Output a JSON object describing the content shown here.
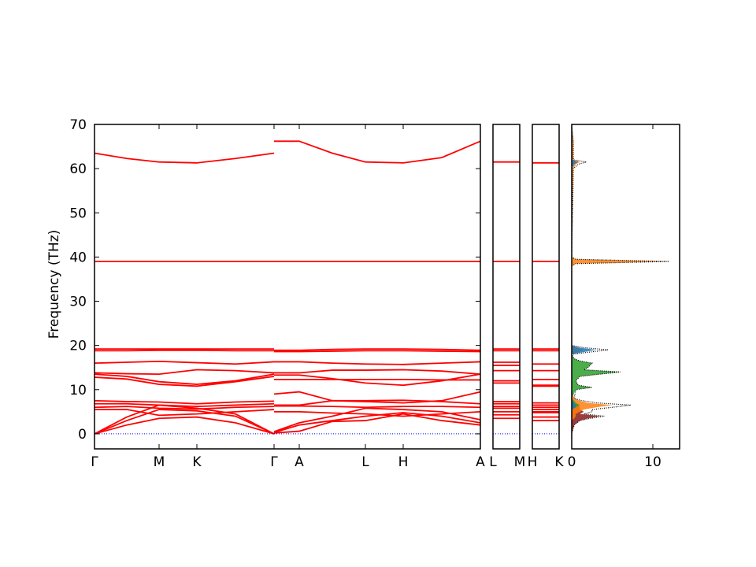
{
  "chart_data": [
    {
      "type": "line",
      "ylabel": "Frequency (THz)",
      "color": "#ff0000",
      "xlim": [
        0,
        490
      ],
      "ylim": [
        -3.4,
        70
      ],
      "yticks": [
        0,
        10,
        20,
        30,
        40,
        50,
        60,
        70
      ],
      "xticks": [
        {
          "value": 0,
          "label": "Γ"
        },
        {
          "value": 82,
          "label": "M"
        },
        {
          "value": 130,
          "label": "K"
        },
        {
          "value": 228,
          "label": "Γ"
        },
        {
          "value": 260,
          "label": "A"
        },
        {
          "value": 344,
          "label": "L"
        },
        {
          "value": 392,
          "label": "H"
        },
        {
          "value": 490,
          "label": "A"
        }
      ],
      "x": [
        0,
        41,
        82,
        130,
        179,
        228,
        228,
        228,
        260,
        302,
        344,
        392,
        441,
        490
      ],
      "series": [
        {
          "values": [
            63.5,
            62.3,
            61.5,
            61.3,
            62.3,
            63.5,
            null,
            66.2,
            66.2,
            63.5,
            61.5,
            61.3,
            62.5,
            66.2
          ]
        },
        {
          "values": [
            39,
            39,
            39,
            39,
            39,
            39,
            null,
            39,
            39,
            39,
            39,
            39,
            39,
            39
          ]
        },
        {
          "values": [
            19.2,
            19.2,
            19.2,
            19.2,
            19.2,
            19.2,
            null,
            18.9,
            18.9,
            19.1,
            19.2,
            19.2,
            19.1,
            18.9
          ]
        },
        {
          "values": [
            18.8,
            18.8,
            18.9,
            18.9,
            18.8,
            18.8,
            null,
            18.6,
            18.6,
            18.7,
            18.8,
            18.8,
            18.7,
            18.6
          ]
        },
        {
          "values": [
            16,
            16.2,
            16.4,
            16.1,
            15.8,
            16.3,
            null,
            16.3,
            16.3,
            16,
            15.8,
            15.7,
            16,
            16.3
          ]
        },
        {
          "values": [
            13.8,
            13.6,
            13.5,
            14.5,
            14.3,
            13.8,
            null,
            13.8,
            13.8,
            14.4,
            14.4,
            14.5,
            14.2,
            13.5
          ]
        },
        {
          "values": [
            13.5,
            13,
            11.8,
            11.2,
            12,
            13.5,
            null,
            13.3,
            13.3,
            12.5,
            11.5,
            11,
            12,
            13.5
          ]
        },
        {
          "values": [
            12.8,
            12.4,
            11.2,
            10.8,
            11.8,
            13,
            null,
            12.3,
            12.3,
            12.3,
            12.3,
            12.3,
            12.2,
            12.2
          ]
        },
        {
          "values": [
            7.5,
            7.3,
            7.2,
            6.8,
            7.2,
            7.4,
            null,
            9,
            9.5,
            7.5,
            7.3,
            7,
            7.5,
            9.5
          ]
        },
        {
          "values": [
            6.8,
            6.8,
            6.5,
            6.2,
            6.5,
            6.8,
            null,
            6.5,
            6.5,
            7.5,
            7.5,
            7.6,
            7.3,
            6.8
          ]
        },
        {
          "values": [
            6,
            6.2,
            5.8,
            5.6,
            6,
            6.2,
            null,
            6.3,
            6.3,
            6.2,
            6,
            6.2,
            6.2,
            6
          ]
        },
        {
          "values": [
            5.5,
            5.5,
            4.2,
            4.5,
            5,
            5.5,
            null,
            5,
            5,
            4.7,
            4.5,
            4,
            4.5,
            5
          ]
        },
        {
          "values": [
            0,
            3.8,
            6.5,
            5.8,
            4.5,
            0,
            null,
            0.5,
            2.5,
            4,
            5.8,
            5.5,
            5,
            3.2
          ]
        },
        {
          "values": [
            0,
            3,
            5.5,
            5.2,
            4,
            0,
            null,
            0.3,
            2,
            3,
            4,
            4.8,
            4,
            2.5
          ]
        },
        {
          "values": [
            0,
            2,
            3.5,
            3.8,
            2.5,
            0,
            null,
            0.2,
            0.6,
            2.8,
            3,
            4.5,
            3,
            2
          ]
        },
        {
          "color": "#0000ff",
          "linestyle": "dotted",
          "values": [
            0,
            0,
            0,
            0,
            0,
            0,
            null,
            0,
            0,
            0,
            0,
            0,
            0,
            0
          ]
        }
      ]
    },
    {
      "type": "line",
      "color": "#ff0000",
      "xlim": [
        0,
        1
      ],
      "ylim": [
        -3.4,
        70
      ],
      "xticks": [
        {
          "value": 0,
          "label": "L"
        },
        {
          "value": 1,
          "label": "M"
        }
      ],
      "x": [
        0,
        1
      ],
      "series": [
        {
          "values": [
            61.5,
            61.5
          ]
        },
        {
          "values": [
            39,
            39
          ]
        },
        {
          "values": [
            19.2,
            19.2
          ]
        },
        {
          "values": [
            18.8,
            18.8
          ]
        },
        {
          "values": [
            16.2,
            16.2
          ]
        },
        {
          "values": [
            15.5,
            15.5
          ]
        },
        {
          "values": [
            14.3,
            14.3
          ]
        },
        {
          "values": [
            12,
            12
          ]
        },
        {
          "values": [
            11.5,
            11.5
          ]
        },
        {
          "values": [
            7.3,
            7.3
          ]
        },
        {
          "values": [
            6.8,
            6.8
          ]
        },
        {
          "values": [
            6.2,
            6.2
          ]
        },
        {
          "values": [
            5.8,
            5.8
          ]
        },
        {
          "values": [
            5,
            5
          ]
        },
        {
          "values": [
            4.3,
            4.3
          ]
        },
        {
          "values": [
            3.5,
            3.5
          ]
        },
        {
          "color": "#0000ff",
          "linestyle": "dotted",
          "values": [
            0,
            0
          ]
        }
      ]
    },
    {
      "type": "line",
      "color": "#ff0000",
      "xlim": [
        0,
        1
      ],
      "ylim": [
        -3.4,
        70
      ],
      "xticks": [
        {
          "value": 0,
          "label": "H"
        },
        {
          "value": 1,
          "label": "K"
        }
      ],
      "x": [
        0,
        1
      ],
      "series": [
        {
          "values": [
            61.3,
            61.3
          ]
        },
        {
          "values": [
            39,
            39
          ]
        },
        {
          "values": [
            19.2,
            19.2
          ]
        },
        {
          "values": [
            18.8,
            18.8
          ]
        },
        {
          "values": [
            15.8,
            15.8
          ]
        },
        {
          "values": [
            14.3,
            14.3
          ]
        },
        {
          "values": [
            12.3,
            12.3
          ]
        },
        {
          "values": [
            11,
            11
          ]
        },
        {
          "values": [
            10.8,
            10.8
          ]
        },
        {
          "values": [
            7,
            7
          ]
        },
        {
          "values": [
            6.5,
            6.5
          ]
        },
        {
          "values": [
            6,
            6
          ]
        },
        {
          "values": [
            5.5,
            5.5
          ]
        },
        {
          "values": [
            5,
            5
          ]
        },
        {
          "values": [
            4.8,
            4.8
          ]
        },
        {
          "values": [
            3.8,
            3.8
          ]
        },
        {
          "values": [
            3,
            3
          ]
        },
        {
          "color": "#0000ff",
          "linestyle": "dotted",
          "values": [
            0,
            0
          ]
        }
      ]
    },
    {
      "type": "dos",
      "xlim": [
        0,
        13.3
      ],
      "ylim": [
        -3.4,
        70
      ],
      "xticks": [
        0,
        10
      ],
      "y": [
        -1,
        0,
        2,
        3,
        3.5,
        4,
        4.5,
        5,
        5.5,
        6,
        6.5,
        7,
        7.5,
        8,
        10,
        10.5,
        11,
        12,
        13,
        14,
        14.5,
        15,
        16,
        16.5,
        17,
        18,
        19,
        19.5,
        20,
        38,
        38.5,
        39,
        39.5,
        40,
        60,
        61,
        61.5,
        62,
        66,
        70
      ],
      "series": [
        {
          "color": "#8b1a1a",
          "values": [
            0,
            0,
            0.3,
            1,
            2,
            3.5,
            1,
            1.5,
            1,
            1,
            0.8,
            0.3,
            0,
            0,
            0,
            0,
            0,
            0,
            0,
            0,
            0,
            0,
            0,
            0,
            0,
            0,
            0,
            0,
            0,
            0,
            0,
            0,
            0,
            0,
            0,
            0,
            0,
            0,
            0,
            0
          ]
        },
        {
          "color": "#ff7f0e",
          "values": [
            0,
            0,
            0,
            0,
            0.3,
            0.5,
            0.5,
            1,
            1.5,
            3,
            5,
            2,
            1,
            0.3,
            0,
            0,
            0,
            0,
            0,
            0,
            0,
            0,
            0,
            0,
            0,
            0,
            1.5,
            0.5,
            0,
            0,
            0.5,
            12,
            0.5,
            0,
            0.2,
            0.5,
            1,
            0.2,
            0.2,
            0
          ]
        },
        {
          "color": "#2ca02c",
          "values": [
            0,
            0,
            0,
            0,
            0,
            0,
            0,
            0,
            0,
            0.5,
            1,
            0.5,
            0.3,
            0,
            0.5,
            2.5,
            0.8,
            0.5,
            1,
            6,
            1.5,
            2,
            2.5,
            1,
            0.3,
            0,
            0,
            0,
            0,
            0,
            0,
            0,
            0,
            0,
            0,
            0,
            0,
            0,
            0,
            0
          ]
        },
        {
          "color": "#1f77b4",
          "values": [
            0,
            0,
            0,
            0,
            0,
            0,
            0,
            0,
            0,
            0.5,
            0.5,
            0.3,
            0,
            0,
            0,
            0,
            0,
            0,
            0,
            0,
            0,
            0,
            0,
            0,
            0,
            0,
            3,
            1,
            0,
            0,
            0,
            0,
            0,
            0,
            0,
            0.3,
            0.8,
            0,
            0,
            0
          ]
        },
        {
          "color": "#000000",
          "linestyle": "dotted",
          "values": [
            0,
            0,
            0.3,
            1,
            2.3,
            4,
            1.5,
            2.5,
            2.5,
            5,
            7.3,
            3.1,
            1.3,
            0.3,
            0.5,
            2.5,
            0.8,
            0.5,
            1,
            6,
            1.5,
            2,
            2.5,
            1,
            0.3,
            0,
            4.5,
            1.5,
            0,
            0,
            0.5,
            12,
            0.5,
            0,
            0.2,
            0.8,
            1.8,
            0.2,
            0.2,
            0
          ]
        }
      ]
    }
  ]
}
